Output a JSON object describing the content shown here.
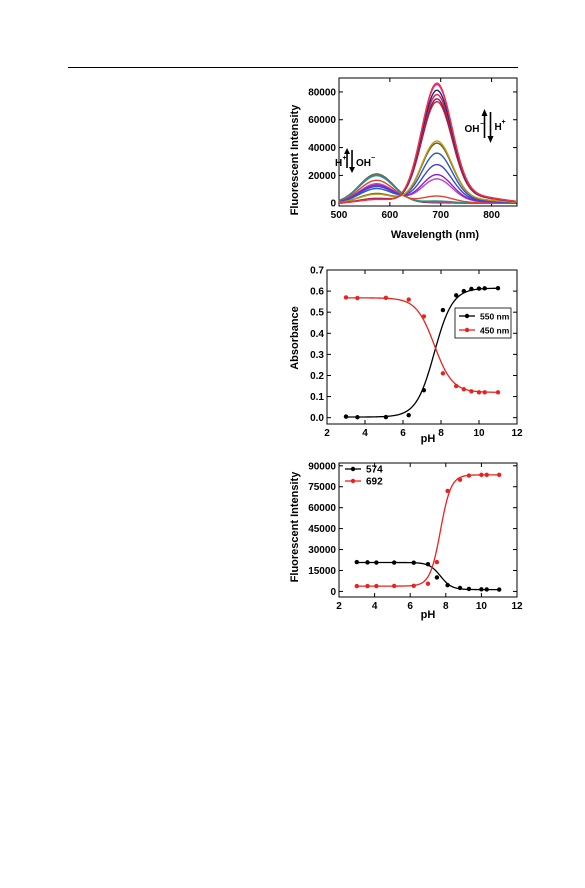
{
  "colors": {
    "black": "#000000",
    "red": "#e8231f"
  },
  "chart_data": [
    {
      "type": "line",
      "xlabel": "Wavelength (nm)",
      "ylabel": "Fluorescent Intensity",
      "xlim": [
        500,
        850
      ],
      "ylim": [
        -2000,
        90000
      ],
      "xticks": [
        500,
        600,
        700,
        800
      ],
      "yticks": [
        0,
        20000,
        40000,
        60000,
        80000
      ],
      "grid": false,
      "legend": "none",
      "peak1_nm": 574,
      "peak2_nm": 692,
      "isosbestic_nm": 620,
      "series": [
        {
          "color": "#1b1b1b",
          "peak1": 21000,
          "peak2": 300
        },
        {
          "color": "#3a9a3a",
          "peak1": 20800,
          "peak2": 500
        },
        {
          "color": "#c92f8a",
          "peak1": 20200,
          "peak2": 800
        },
        {
          "color": "#1a9a8f",
          "peak1": 19800,
          "peak2": 1500
        },
        {
          "color": "#e3432c",
          "peak1": 16500,
          "peak2": 5000
        },
        {
          "color": "#c040c0",
          "peak1": 14000,
          "peak2": 17000
        },
        {
          "color": "#8e22c7",
          "peak1": 13000,
          "peak2": 20000
        },
        {
          "color": "#3d47cf",
          "peak1": 12000,
          "peak2": 27000
        },
        {
          "color": "#2858c9",
          "peak1": 10500,
          "peak2": 35000
        },
        {
          "color": "#6c5e14",
          "peak1": 7000,
          "peak2": 42000
        },
        {
          "color": "#b99b1b",
          "peak1": 6500,
          "peak2": 43500
        },
        {
          "color": "#c72a1f",
          "peak1": 3500,
          "peak2": 71000
        },
        {
          "color": "#7a1d6e",
          "peak1": 3200,
          "peak2": 73000
        },
        {
          "color": "#e8203f",
          "peak1": 3000,
          "peak2": 76000
        },
        {
          "color": "#1f2a7a",
          "peak1": 2900,
          "peak2": 79000
        },
        {
          "color": "#d51ad6",
          "peak1": 2800,
          "peak2": 83000
        },
        {
          "color": "#e83a3a",
          "peak1": 2700,
          "peak2": 84000
        }
      ],
      "annotations": {
        "left": {
          "main": "H",
          "sup": "+",
          "main2": "OH",
          "sup2": "−"
        },
        "right": {
          "main": "OH",
          "sup": "−",
          "main2": "H",
          "sup2": "+"
        }
      }
    },
    {
      "type": "line",
      "xlabel": "pH",
      "ylabel": "Absorbance",
      "xlim": [
        2,
        12
      ],
      "ylim": [
        -0.03,
        0.7
      ],
      "xticks": [
        2,
        4,
        6,
        8,
        10,
        12
      ],
      "yticks": [
        0.0,
        0.1,
        0.2,
        0.3,
        0.4,
        0.5,
        0.6,
        0.7
      ],
      "ytick_labels": [
        "0.0",
        "0.1",
        "0.2",
        "0.3",
        "0.4",
        "0.5",
        "0.6",
        "0.7"
      ],
      "grid": false,
      "legend": "right",
      "series": [
        {
          "name": "550 nm",
          "color": "#000000",
          "x": [
            3.0,
            3.6,
            5.1,
            6.3,
            7.1,
            8.1,
            8.8,
            9.2,
            9.6,
            10.0,
            10.3,
            11.0
          ],
          "y": [
            0.005,
            0.002,
            0.003,
            0.012,
            0.13,
            0.51,
            0.58,
            0.6,
            0.61,
            0.612,
            0.613,
            0.614
          ],
          "fit": {
            "low": 0.003,
            "high": 0.614,
            "x0": 7.65,
            "k": 2.1
          }
        },
        {
          "name": "450 nm",
          "color": "#e8231f",
          "x": [
            3.0,
            3.6,
            5.1,
            6.3,
            7.1,
            8.1,
            8.8,
            9.2,
            9.6,
            10.0,
            10.3,
            11.0
          ],
          "y": [
            0.57,
            0.567,
            0.568,
            0.56,
            0.48,
            0.21,
            0.15,
            0.135,
            0.125,
            0.12,
            0.12,
            0.12
          ],
          "fit": {
            "low": 0.12,
            "high": 0.568,
            "x0": 7.65,
            "k": 2.1
          }
        }
      ]
    },
    {
      "type": "line",
      "xlabel": "pH",
      "ylabel": "Fluorescent Intensity",
      "xlim": [
        2,
        12
      ],
      "ylim": [
        -4000,
        92000
      ],
      "xticks": [
        2,
        4,
        6,
        8,
        10,
        12
      ],
      "yticks": [
        0,
        15000,
        30000,
        45000,
        60000,
        75000,
        90000
      ],
      "grid": false,
      "legend": "top-left",
      "series": [
        {
          "name": "574",
          "color": "#000000",
          "x": [
            3.0,
            3.6,
            4.1,
            5.1,
            6.2,
            7.0,
            7.5,
            8.1,
            8.8,
            9.3,
            10.0,
            10.3,
            11.0
          ],
          "y": [
            21000,
            20800,
            20700,
            20700,
            20600,
            19500,
            10000,
            4500,
            2500,
            1800,
            1500,
            1400,
            1300
          ],
          "fit": {
            "low": 1300,
            "high": 20700,
            "x0": 7.7,
            "k": 3.2
          }
        },
        {
          "name": "692",
          "color": "#e8231f",
          "x": [
            3.0,
            3.6,
            4.1,
            5.1,
            6.2,
            7.0,
            7.5,
            8.1,
            8.8,
            9.3,
            10.0,
            10.3,
            11.0
          ],
          "y": [
            3800,
            3800,
            3800,
            3900,
            4000,
            5500,
            21000,
            72000,
            80000,
            83000,
            83500,
            83500,
            83500
          ],
          "fit": {
            "low": 3800,
            "high": 83500,
            "x0": 7.7,
            "k": 3.4
          }
        }
      ]
    }
  ]
}
